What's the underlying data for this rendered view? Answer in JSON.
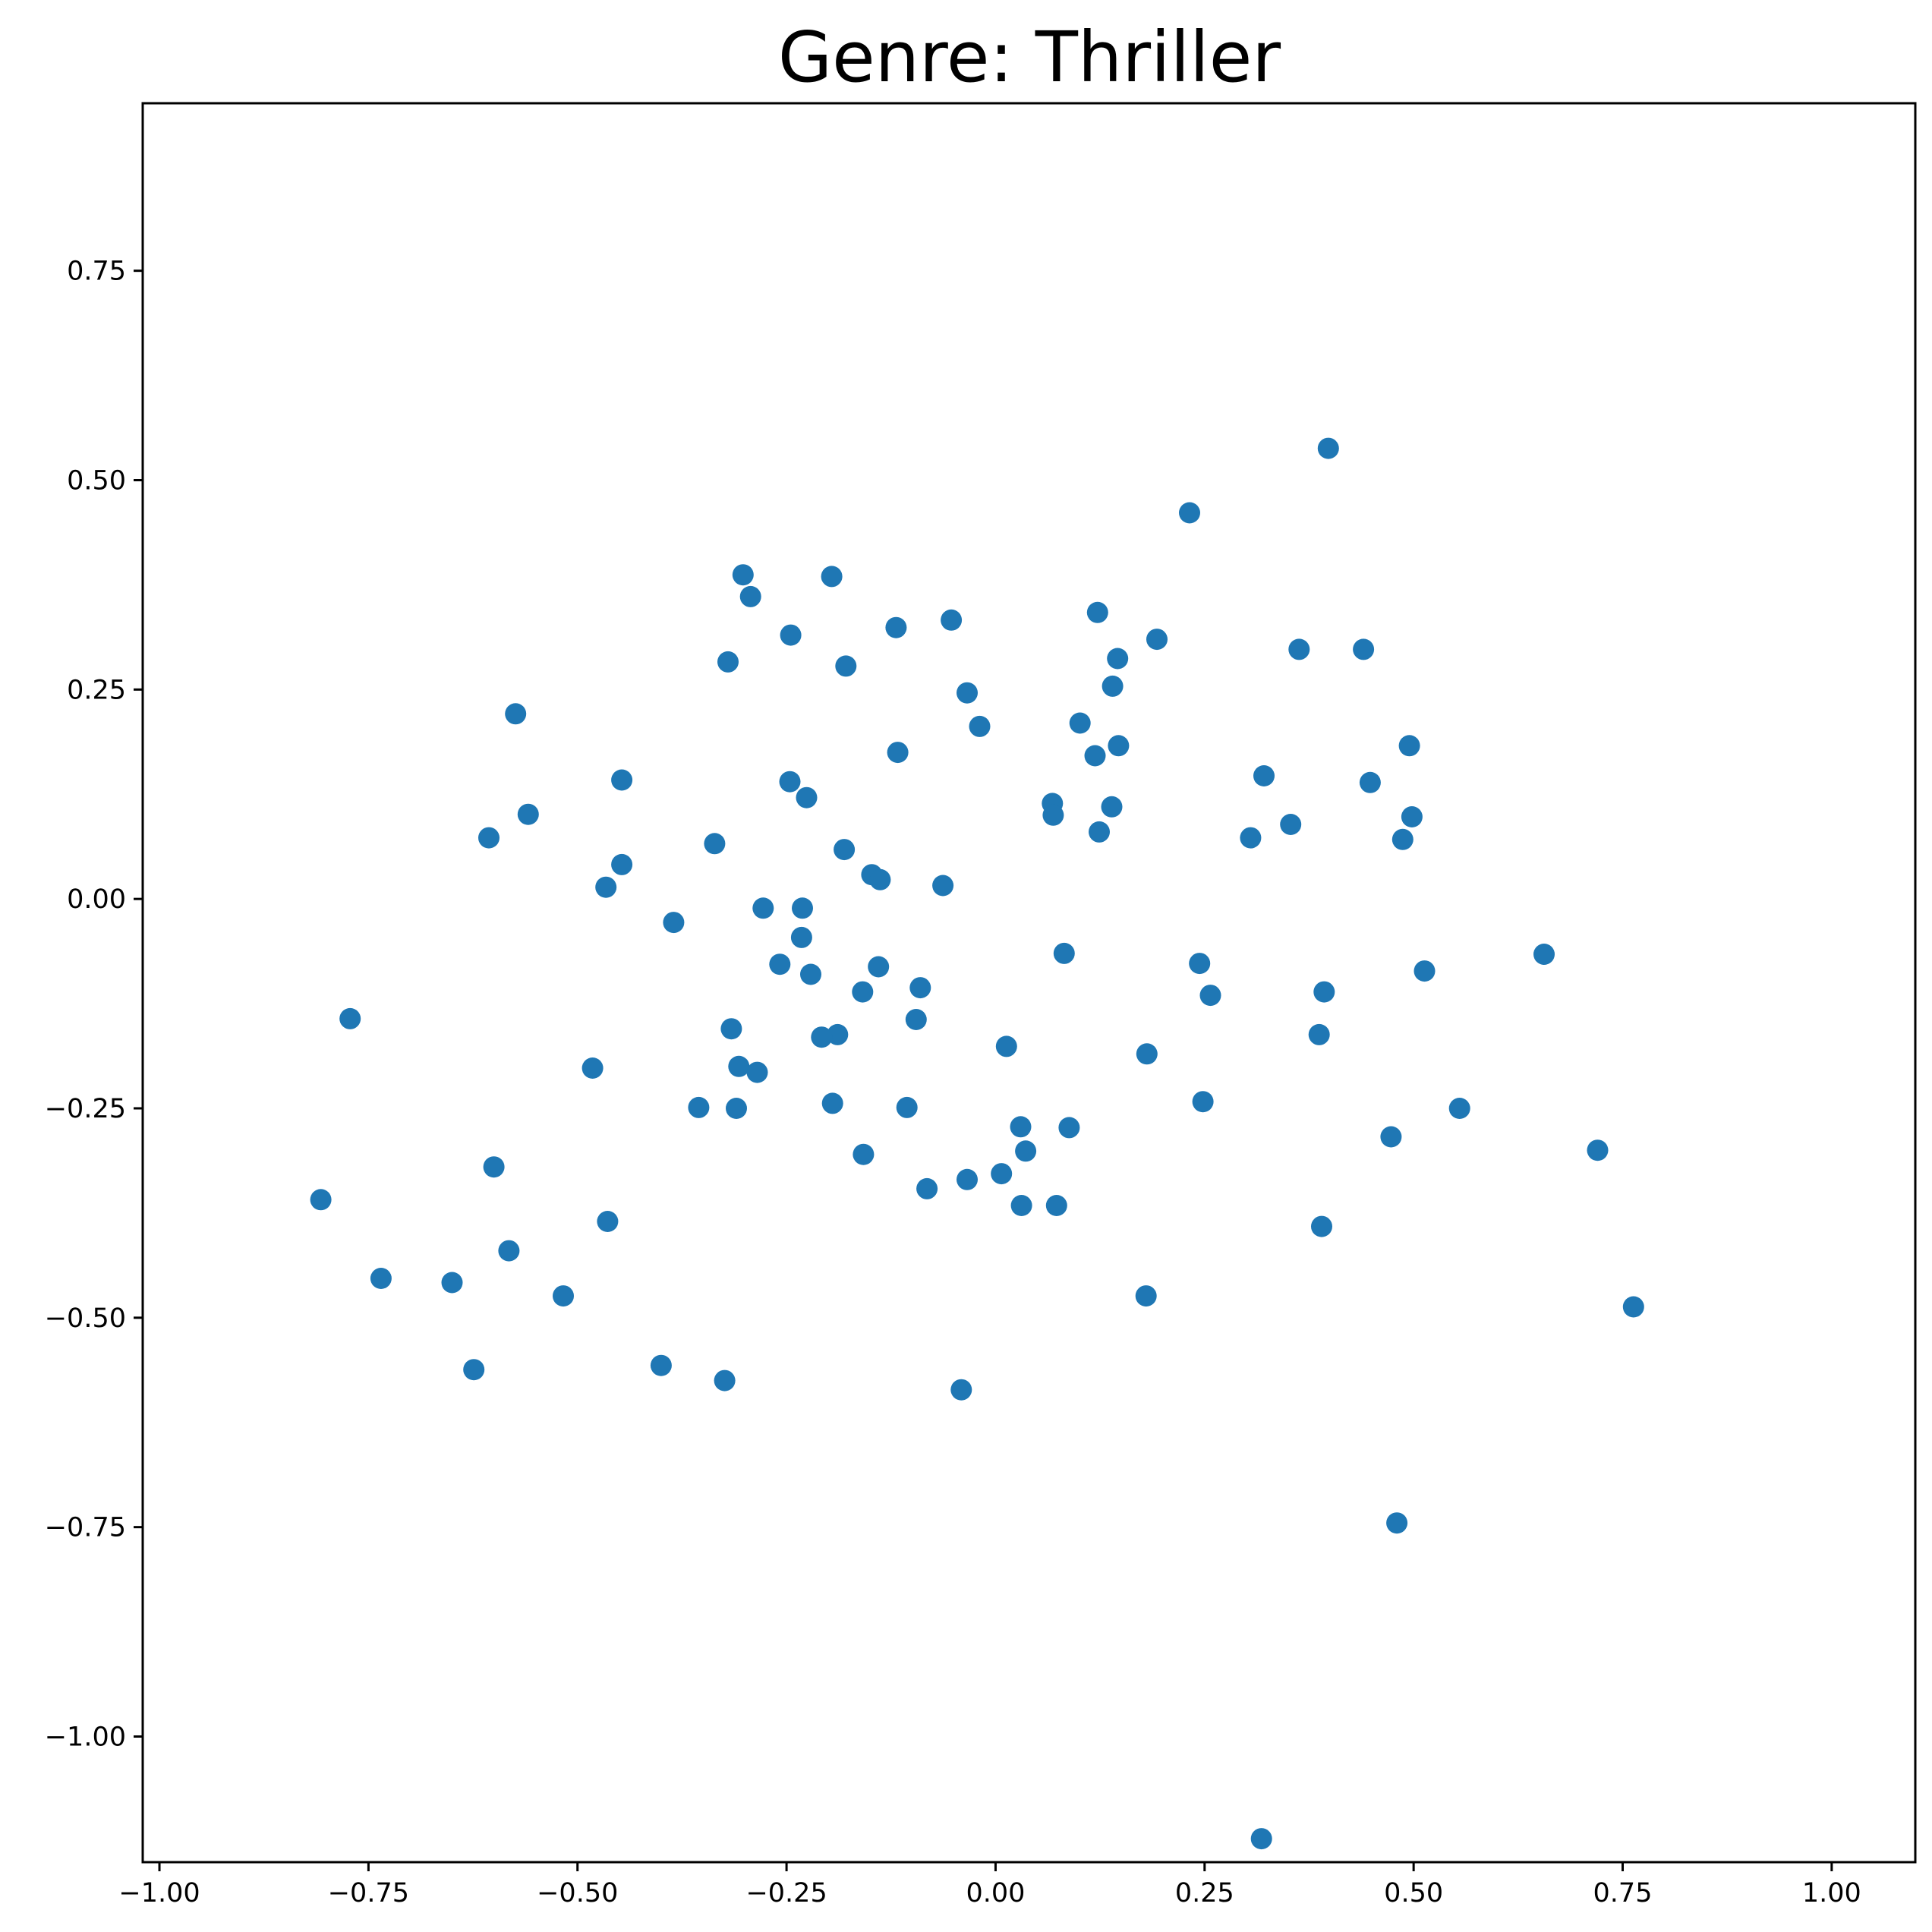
{
  "chart_data": {
    "type": "scatter",
    "title": "Genre: Thriller",
    "xlabel": "",
    "ylabel": "",
    "xlim": [
      -1.02,
      1.1
    ],
    "ylim": [
      -1.15,
      0.95
    ],
    "x_ticks": [
      -1.0,
      -0.75,
      -0.5,
      -0.25,
      0.0,
      0.25,
      0.5,
      0.75,
      1.0
    ],
    "x_tick_labels": [
      "−1.00",
      "−0.75",
      "−0.50",
      "−0.25",
      "0.00",
      "0.25",
      "0.50",
      "0.75",
      "1.00"
    ],
    "y_ticks": [
      0.75,
      0.5,
      0.25,
      0.0,
      -0.25,
      -0.5,
      -0.75,
      -1.0
    ],
    "y_tick_labels": [
      "0.75",
      "0.50",
      "0.25",
      "0.00",
      "−0.25",
      "−0.50",
      "−0.75",
      "−1.00"
    ],
    "grid": false,
    "legend": "none",
    "color": "#1f77b4",
    "points": [
      [
        0.398,
        0.538
      ],
      [
        0.232,
        0.461
      ],
      [
        -0.302,
        0.387
      ],
      [
        -0.196,
        0.385
      ],
      [
        -0.293,
        0.361
      ],
      [
        0.122,
        0.342
      ],
      [
        -0.053,
        0.333
      ],
      [
        -0.119,
        0.324
      ],
      [
        -0.245,
        0.315
      ],
      [
        0.193,
        0.31
      ],
      [
        0.363,
        0.298
      ],
      [
        0.44,
        0.298
      ],
      [
        0.146,
        0.287
      ],
      [
        -0.32,
        0.283
      ],
      [
        -0.179,
        0.278
      ],
      [
        -0.034,
        0.246
      ],
      [
        0.14,
        0.254
      ],
      [
        -0.574,
        0.221
      ],
      [
        0.101,
        0.21
      ],
      [
        -0.019,
        0.206
      ],
      [
        0.147,
        0.183
      ],
      [
        0.495,
        0.183
      ],
      [
        -0.117,
        0.175
      ],
      [
        0.119,
        0.171
      ],
      [
        0.321,
        0.147
      ],
      [
        -0.447,
        0.142
      ],
      [
        0.448,
        0.139
      ],
      [
        -0.246,
        0.14
      ],
      [
        -0.226,
        0.121
      ],
      [
        0.068,
        0.114
      ],
      [
        0.139,
        0.11
      ],
      [
        -0.559,
        0.101
      ],
      [
        0.069,
        0.1
      ],
      [
        0.498,
        0.098
      ],
      [
        0.353,
        0.089
      ],
      [
        0.124,
        0.08
      ],
      [
        -0.606,
        0.073
      ],
      [
        0.305,
        0.073
      ],
      [
        0.487,
        0.071
      ],
      [
        -0.336,
        0.066
      ],
      [
        -0.181,
        0.059
      ],
      [
        -0.447,
        0.041
      ],
      [
        -0.148,
        0.029
      ],
      [
        -0.138,
        0.023
      ],
      [
        -0.063,
        0.016
      ],
      [
        -0.466,
        0.014
      ],
      [
        -0.278,
        -0.011
      ],
      [
        -0.231,
        -0.011
      ],
      [
        -0.385,
        -0.028
      ],
      [
        -0.232,
        -0.046
      ],
      [
        0.656,
        -0.066
      ],
      [
        0.082,
        -0.065
      ],
      [
        -0.258,
        -0.078
      ],
      [
        0.244,
        -0.077
      ],
      [
        -0.14,
        -0.081
      ],
      [
        0.513,
        -0.086
      ],
      [
        -0.221,
        -0.09
      ],
      [
        -0.09,
        -0.106
      ],
      [
        -0.159,
        -0.111
      ],
      [
        0.393,
        -0.111
      ],
      [
        0.257,
        -0.115
      ],
      [
        -0.772,
        -0.143
      ],
      [
        -0.095,
        -0.144
      ],
      [
        -0.316,
        -0.155
      ],
      [
        -0.189,
        -0.162
      ],
      [
        0.387,
        -0.162
      ],
      [
        -0.208,
        -0.165
      ],
      [
        0.013,
        -0.176
      ],
      [
        0.181,
        -0.185
      ],
      [
        -0.307,
        -0.2
      ],
      [
        -0.482,
        -0.202
      ],
      [
        -0.285,
        -0.207
      ],
      [
        -0.195,
        -0.244
      ],
      [
        0.248,
        -0.242
      ],
      [
        -0.355,
        -0.249
      ],
      [
        -0.106,
        -0.249
      ],
      [
        -0.31,
        -0.25
      ],
      [
        0.555,
        -0.25
      ],
      [
        0.03,
        -0.272
      ],
      [
        0.088,
        -0.273
      ],
      [
        0.473,
        -0.284
      ],
      [
        0.72,
        -0.3
      ],
      [
        0.036,
        -0.301
      ],
      [
        -0.158,
        -0.305
      ],
      [
        0.007,
        -0.328
      ],
      [
        -0.034,
        -0.335
      ],
      [
        -0.082,
        -0.346
      ],
      [
        -0.807,
        -0.359
      ],
      [
        0.031,
        -0.366
      ],
      [
        0.073,
        -0.366
      ],
      [
        -0.6,
        -0.32
      ],
      [
        -0.464,
        -0.385
      ],
      [
        0.39,
        -0.391
      ],
      [
        -0.582,
        -0.42
      ],
      [
        -0.735,
        -0.453
      ],
      [
        -0.65,
        -0.458
      ],
      [
        0.18,
        -0.474
      ],
      [
        -0.517,
        -0.474
      ],
      [
        0.763,
        -0.487
      ],
      [
        -0.4,
        -0.557
      ],
      [
        -0.624,
        -0.562
      ],
      [
        -0.324,
        -0.575
      ],
      [
        -0.041,
        -0.586
      ],
      [
        0.48,
        -0.745
      ],
      [
        0.318,
        -1.122
      ]
    ]
  }
}
